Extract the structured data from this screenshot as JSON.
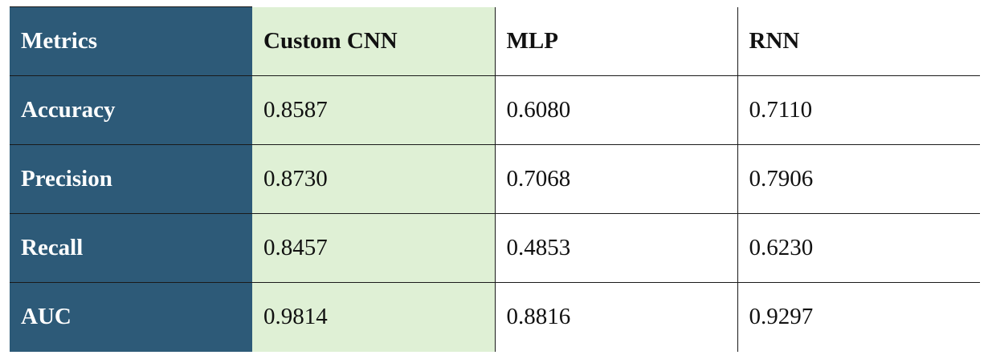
{
  "table": {
    "corner_label": "Metrics",
    "columns": [
      "Custom CNN",
      "MLP",
      "RNN"
    ],
    "rows": [
      {
        "metric": "Accuracy",
        "values": [
          "0.8587",
          "0.6080",
          "0.7110"
        ]
      },
      {
        "metric": "Precision",
        "values": [
          "0.8730",
          "0.7068",
          "0.7906"
        ]
      },
      {
        "metric": "Recall",
        "values": [
          "0.8457",
          "0.4853",
          "0.6230"
        ]
      },
      {
        "metric": "AUC",
        "values": [
          "0.9814",
          "0.8816",
          "0.9297"
        ]
      }
    ]
  },
  "colors": {
    "row_header_bg": "#2d5a78",
    "row_header_text": "#ffffff",
    "highlight_column_bg": "#dff0d5",
    "border": "#1a1a1a"
  }
}
